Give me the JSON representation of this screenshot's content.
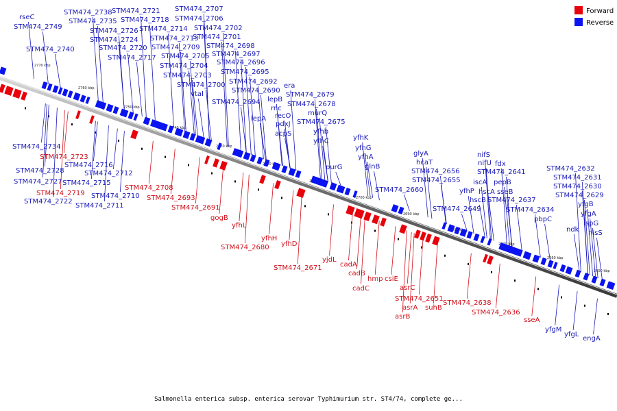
{
  "colors": {
    "forward": "#e8000b",
    "reverse": "#0a14f0",
    "backbone": "#8a8a8a",
    "forward_label": "#d0101a",
    "reverse_label": "#1818b8"
  },
  "legend": {
    "forward_label": "Forward",
    "reverse_label": "Reverse"
  },
  "caption": "Salmonella enterica subsp. enterica serovar Typhimurium str. ST4/74, complete ge...",
  "scale_ticks": [
    "2770 kbp",
    "2760 kbp",
    "2750 kbp",
    "2740 kbp",
    "2730 kbp",
    "2720 kbp",
    "2710 kbp",
    "2700 kbp",
    "2690 kbp",
    "2680 kbp",
    "2670 kbp",
    "2660 kbp",
    "2650 kbp"
  ],
  "reverse_labels": [
    "rseC",
    "STM474_2749",
    "STM474_2740",
    "STM474_2738",
    "STM474_2735",
    "STM474_2726",
    "STM474_2724",
    "STM474_2720",
    "STM474_2717",
    "STM474_2721",
    "STM474_2718",
    "STM474_2714",
    "STM474_2713",
    "STM474_2709",
    "STM474_2705",
    "STM474_2704",
    "STM474_2703",
    "STM474_2700",
    "vtaI",
    "STM474_2707",
    "STM474_2706",
    "STM474_2702",
    "STM474_2701",
    "STM474_2698",
    "STM474_2697",
    "STM474_2696",
    "STM474_2695",
    "STM474_2692",
    "STM474_2690",
    "STM474_2694",
    "era",
    "STM474_2679",
    "STM474_2678",
    "lepB",
    "rnc",
    "recO",
    "pdxJ",
    "acpS",
    "lepA",
    "murQ",
    "STM474_2675",
    "yfhb",
    "yfhC",
    "yfhK",
    "yfhG",
    "yfhA",
    "glnB",
    "purG",
    "glyA",
    "hcaT",
    "STM474_2656",
    "STM474_2655",
    "STM474_2660",
    "STM474_2649",
    "nifS",
    "nifU",
    "fdx",
    "STM474_2641",
    "iscA",
    "hscA",
    "pepB",
    "sseB",
    "yfhP",
    "hscB",
    "STM474_2637",
    "STM474_2634",
    "pbpC",
    "STM474_2632",
    "STM474_2631",
    "STM474_2630",
    "STM474_2629",
    "yfgB",
    "yfgA",
    "ispG",
    "ndk",
    "hisS",
    "STM474_2734",
    "STM474_2728",
    "STM474_2727",
    "STM474_2722",
    "STM474_2716",
    "STM474_2715",
    "STM474_2712",
    "STM474_2710",
    "STM474_2711",
    "yfgM",
    "yfgL",
    "engA"
  ],
  "forward_labels": [
    "STM474_2723",
    "STM474_2719",
    "STM474_2708",
    "STM474_2693",
    "STM474_2691",
    "gogB",
    "yfhL",
    "STM474_2680",
    "yfhH",
    "yfhD",
    "STM474_2671",
    "yjdL",
    "cadA",
    "cadB",
    "cadC",
    "hmp",
    "csiE",
    "asrC",
    "STM474_2651",
    "asrA",
    "asrB",
    "suhB",
    "STM474_2638",
    "STM474_2636",
    "sseA"
  ]
}
